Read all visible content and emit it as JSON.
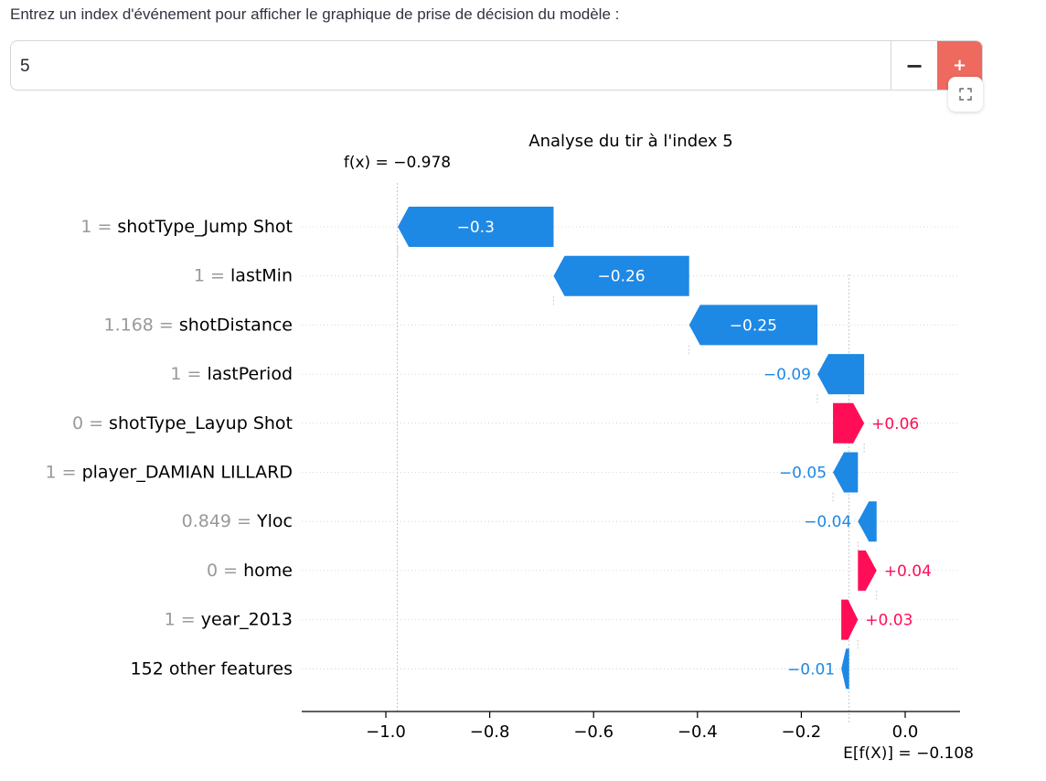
{
  "input": {
    "label": "Entrez un index d'événement pour afficher le graphique de prise de décision du modèle :",
    "value": "5",
    "minus_label": "−",
    "plus_label": "+"
  },
  "chart_data": {
    "type": "waterfall",
    "title": "Analyse du tir à l'index 5",
    "fx_label": "f(x) = −0.978",
    "base_label": "E[f(X)] = −0.108",
    "fx": -0.978,
    "base_value": -0.108,
    "xlim": [
      -1.13,
      0.1
    ],
    "xticks": [
      {
        "v": -1.0,
        "label": "−1.0"
      },
      {
        "v": -0.8,
        "label": "−0.8"
      },
      {
        "v": -0.6,
        "label": "−0.6"
      },
      {
        "v": -0.4,
        "label": "−0.4"
      },
      {
        "v": -0.2,
        "label": "−0.2"
      },
      {
        "v": 0.0,
        "label": "0.0"
      }
    ],
    "features": [
      {
        "value": "1",
        "name": "shotType_Jump Shot",
        "start": -0.677,
        "end": -0.977,
        "label": "−0.3"
      },
      {
        "value": "1",
        "name": "lastMin",
        "start": -0.416,
        "end": -0.677,
        "label": "−0.26"
      },
      {
        "value": "1.168",
        "name": "shotDistance",
        "start": -0.169,
        "end": -0.416,
        "label": "−0.25"
      },
      {
        "value": "1",
        "name": "lastPeriod",
        "start": -0.079,
        "end": -0.169,
        "label": "−0.09"
      },
      {
        "value": "0",
        "name": "shotType_Layup Shot",
        "start": -0.139,
        "end": -0.079,
        "label": "+0.06"
      },
      {
        "value": "1",
        "name": "player_DAMIAN LILLARD",
        "start": -0.091,
        "end": -0.139,
        "label": "−0.05"
      },
      {
        "value": "0.849",
        "name": "Yloc",
        "start": -0.055,
        "end": -0.091,
        "label": "−0.04"
      },
      {
        "value": "0",
        "name": "home",
        "start": -0.091,
        "end": -0.055,
        "label": "+0.04"
      },
      {
        "value": "1",
        "name": "year_2013",
        "start": -0.123,
        "end": -0.091,
        "label": "+0.03"
      },
      {
        "value": "",
        "name": "152 other features",
        "start": -0.108,
        "end": -0.123,
        "label": "−0.01"
      }
    ],
    "colors": {
      "positive": "#ff0d57",
      "negative": "#1e88e5",
      "muted": "#999999",
      "text": "#000000"
    }
  }
}
